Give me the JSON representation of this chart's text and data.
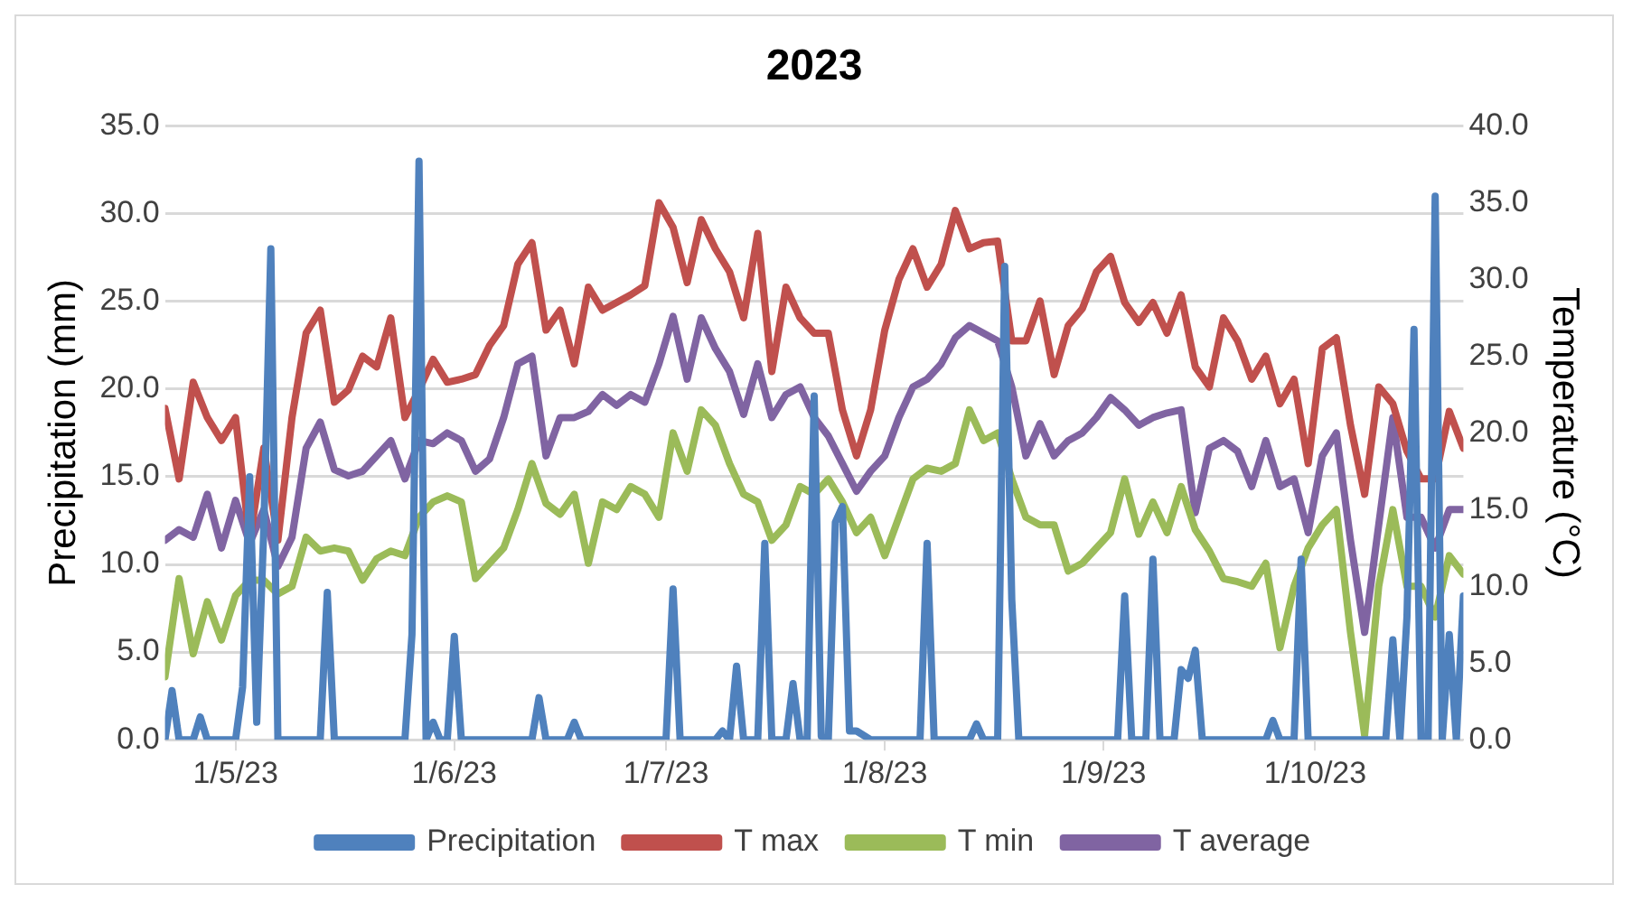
{
  "chart_data": {
    "type": "line",
    "title": "2023",
    "ylabel": "Precipitation (mm)",
    "y2label": "Temperature (°C)",
    "x": [
      "2023-04-21",
      "2023-04-23",
      "2023-04-25",
      "2023-04-27",
      "2023-04-29",
      "2023-05-01",
      "2023-05-03",
      "2023-05-05",
      "2023-05-07",
      "2023-05-09",
      "2023-05-11",
      "2023-05-13",
      "2023-05-15",
      "2023-05-17",
      "2023-05-19",
      "2023-05-21",
      "2023-05-23",
      "2023-05-25",
      "2023-05-27",
      "2023-05-29",
      "2023-05-31",
      "2023-06-02",
      "2023-06-04",
      "2023-06-06",
      "2023-06-08",
      "2023-06-10",
      "2023-06-12",
      "2023-06-14",
      "2023-06-16",
      "2023-06-18",
      "2023-06-20",
      "2023-06-22",
      "2023-06-24",
      "2023-06-26",
      "2023-06-28",
      "2023-06-30",
      "2023-07-02",
      "2023-07-04",
      "2023-07-06",
      "2023-07-08",
      "2023-07-10",
      "2023-07-12",
      "2023-07-14",
      "2023-07-16",
      "2023-07-18",
      "2023-07-20",
      "2023-07-22",
      "2023-07-24",
      "2023-07-26",
      "2023-07-28",
      "2023-07-30",
      "2023-08-01",
      "2023-08-03",
      "2023-08-05",
      "2023-08-07",
      "2023-08-09",
      "2023-08-11",
      "2023-08-13",
      "2023-08-15",
      "2023-08-17",
      "2023-08-19",
      "2023-08-21",
      "2023-08-23",
      "2023-08-25",
      "2023-08-27",
      "2023-08-29",
      "2023-08-31",
      "2023-09-02",
      "2023-09-04",
      "2023-09-06",
      "2023-09-08",
      "2023-09-10",
      "2023-09-12",
      "2023-09-14",
      "2023-09-16",
      "2023-09-18",
      "2023-09-20",
      "2023-09-22",
      "2023-09-24",
      "2023-09-26",
      "2023-09-28",
      "2023-09-30",
      "2023-10-02",
      "2023-10-04",
      "2023-10-06",
      "2023-10-08",
      "2023-10-10",
      "2023-10-12",
      "2023-10-14",
      "2023-10-16",
      "2023-10-18",
      "2023-10-20",
      "2023-10-22"
    ],
    "series": [
      {
        "name": "Precipitation",
        "color": "#4f81bd",
        "type": "line",
        "x": [
          "2023-04-21",
          "2023-04-22",
          "2023-04-23",
          "2023-04-25",
          "2023-04-26",
          "2023-04-27",
          "2023-05-01",
          "2023-05-02",
          "2023-05-03",
          "2023-05-04",
          "2023-05-05",
          "2023-05-06",
          "2023-05-07",
          "2023-05-13",
          "2023-05-14",
          "2023-05-15",
          "2023-05-25",
          "2023-05-26",
          "2023-05-27",
          "2023-05-28",
          "2023-05-29",
          "2023-05-30",
          "2023-05-31",
          "2023-06-01",
          "2023-06-02",
          "2023-06-12",
          "2023-06-13",
          "2023-06-14",
          "2023-06-17",
          "2023-06-18",
          "2023-06-19",
          "2023-07-01",
          "2023-07-02",
          "2023-07-03",
          "2023-07-08",
          "2023-07-09",
          "2023-07-10",
          "2023-07-11",
          "2023-07-12",
          "2023-07-14",
          "2023-07-15",
          "2023-07-16",
          "2023-07-18",
          "2023-07-19",
          "2023-07-20",
          "2023-07-21",
          "2023-07-22",
          "2023-07-23",
          "2023-07-24",
          "2023-07-25",
          "2023-07-26",
          "2023-07-27",
          "2023-07-28",
          "2023-07-30",
          "2023-08-06",
          "2023-08-07",
          "2023-08-08",
          "2023-08-13",
          "2023-08-14",
          "2023-08-15",
          "2023-08-17",
          "2023-08-18",
          "2023-08-19",
          "2023-08-20",
          "2023-09-03",
          "2023-09-04",
          "2023-09-05",
          "2023-09-07",
          "2023-09-08",
          "2023-09-09",
          "2023-09-11",
          "2023-09-12",
          "2023-09-13",
          "2023-09-14",
          "2023-09-15",
          "2023-09-24",
          "2023-09-25",
          "2023-09-26",
          "2023-09-28",
          "2023-09-29",
          "2023-09-30",
          "2023-10-11",
          "2023-10-12",
          "2023-10-13",
          "2023-10-14",
          "2023-10-15",
          "2023-10-16",
          "2023-10-17",
          "2023-10-18",
          "2023-10-19",
          "2023-10-20",
          "2023-10-21",
          "2023-10-22"
        ],
        "values": [
          0,
          2.8,
          0,
          0,
          1.3,
          0,
          0,
          3,
          15,
          1,
          12,
          28,
          0,
          0,
          8.4,
          0,
          0,
          6,
          33,
          0,
          1,
          0,
          0,
          5.9,
          0,
          0,
          2.4,
          0,
          0,
          1,
          0,
          0,
          8.6,
          0,
          0,
          0.5,
          0,
          4.2,
          0,
          0,
          11.2,
          0,
          0,
          3.2,
          0,
          0,
          19.6,
          0.2,
          0,
          12.4,
          13.3,
          0.5,
          0.5,
          0,
          0,
          11.2,
          0,
          0,
          0.9,
          0,
          0,
          27,
          8,
          0,
          0,
          8.2,
          0,
          0,
          10.3,
          0,
          0,
          4,
          3.5,
          5.1,
          0,
          0,
          1.1,
          0,
          0,
          10.3,
          0,
          0,
          5.7,
          0,
          7,
          23.4,
          0,
          0,
          31,
          0,
          6,
          0,
          8.2
        ]
      },
      {
        "name": "T max",
        "color": "#c0504d",
        "type": "line",
        "axis": "y2",
        "values": [
          21.6,
          17,
          23.3,
          21,
          19.5,
          21,
          13,
          19,
          13,
          21,
          26.5,
          28,
          22,
          22.8,
          25,
          24.3,
          27.5,
          21,
          22.8,
          24.8,
          23.3,
          23.5,
          23.8,
          25.7,
          27,
          31,
          32.4,
          26.7,
          28,
          24.5,
          29.5,
          28,
          28.5,
          29,
          29.6,
          35,
          33.4,
          29.8,
          33.9,
          32,
          30.5,
          27.5,
          33,
          24,
          29.5,
          27.5,
          26.5,
          26.5,
          21.5,
          18.5,
          21.5,
          26.7,
          30,
          32,
          29.5,
          31,
          34.5,
          32,
          32.4,
          32.5,
          26,
          26,
          28.6,
          23.8,
          27,
          28.1,
          30.5,
          31.5,
          28.5,
          27.2,
          28.5,
          26.5,
          29,
          24.3,
          23,
          27.5,
          26,
          23.5,
          25,
          21.9,
          23.5,
          18,
          25.5,
          26.2,
          20.5,
          16,
          23,
          21.9,
          18.8,
          17,
          17,
          21.4,
          19
        ]
      },
      {
        "name": "T min",
        "color": "#9bbb59",
        "type": "line",
        "axis": "y2",
        "values": [
          4.1,
          10.5,
          5.6,
          9,
          6.5,
          9.4,
          10.4,
          10.4,
          9.5,
          10,
          13.2,
          12.3,
          12.5,
          12.3,
          10.4,
          11.8,
          12.3,
          12,
          14.5,
          15.5,
          15.9,
          15.5,
          10.5,
          11.5,
          12.5,
          15,
          18,
          15.4,
          14.7,
          16,
          11.5,
          15.5,
          15,
          16.5,
          16,
          14.5,
          20,
          17.5,
          21.5,
          20.5,
          18,
          16,
          15.5,
          13,
          14,
          16.5,
          16,
          17,
          15.5,
          13.5,
          14.5,
          12,
          14.5,
          17,
          17.7,
          17.5,
          18,
          21.5,
          19.5,
          20,
          17,
          14.5,
          14,
          14,
          11,
          11.5,
          12.5,
          13.5,
          17,
          13.4,
          15.5,
          13.5,
          16.5,
          13.7,
          12.3,
          10.5,
          10.3,
          10,
          11.5,
          6,
          10,
          12.5,
          14,
          15,
          7,
          0.3,
          10,
          15,
          10,
          10,
          8,
          12,
          10.8
        ]
      },
      {
        "name": "T average",
        "color": "#8064a2",
        "type": "line",
        "axis": "y2",
        "values": [
          13,
          13.7,
          13.2,
          16,
          12.5,
          15.6,
          12.8,
          15,
          11.3,
          13.2,
          19,
          20.7,
          17.6,
          17.2,
          17.5,
          18.5,
          19.5,
          17,
          19.5,
          19.3,
          20,
          19.5,
          17.5,
          18.3,
          21,
          24.5,
          25,
          18.5,
          21,
          21,
          21.4,
          22.5,
          21.8,
          22.5,
          22,
          24.5,
          27.6,
          23.5,
          27.5,
          25.5,
          24,
          21.2,
          24.5,
          21,
          22.5,
          23,
          21,
          19.8,
          18,
          16.2,
          17.5,
          18.5,
          21,
          23,
          23.5,
          24.5,
          26.2,
          27,
          26.5,
          26,
          23,
          18.5,
          20.6,
          18.5,
          19.5,
          20,
          21,
          22.3,
          21.5,
          20.5,
          21,
          21.3,
          21.5,
          14.8,
          19,
          19.5,
          18.8,
          16.5,
          19.5,
          16.5,
          17,
          13.5,
          18.5,
          20,
          13,
          7,
          14,
          21,
          14.5,
          14.5,
          12.5,
          15,
          15
        ]
      }
    ],
    "xlim": [
      "2023-04-21",
      "2023-10-22"
    ],
    "xticks": [
      {
        "value": "2023-05-01",
        "label": "1/5/23"
      },
      {
        "value": "2023-06-01",
        "label": "1/6/23"
      },
      {
        "value": "2023-07-01",
        "label": "1/7/23"
      },
      {
        "value": "2023-08-01",
        "label": "1/8/23"
      },
      {
        "value": "2023-09-01",
        "label": "1/9/23"
      },
      {
        "value": "2023-10-01",
        "label": "1/10/23"
      }
    ],
    "ylim": [
      0,
      35
    ],
    "yticks": [
      {
        "value": 0,
        "label": "0.0"
      },
      {
        "value": 5,
        "label": "5.0"
      },
      {
        "value": 10,
        "label": "10.0"
      },
      {
        "value": 15,
        "label": "15.0"
      },
      {
        "value": 20,
        "label": "20.0"
      },
      {
        "value": 25,
        "label": "25.0"
      },
      {
        "value": 30,
        "label": "30.0"
      },
      {
        "value": 35,
        "label": "35.0"
      }
    ],
    "y2lim": [
      0,
      40
    ],
    "y2ticks": [
      {
        "value": 0,
        "label": "0.0"
      },
      {
        "value": 5,
        "label": "5.0"
      },
      {
        "value": 10,
        "label": "10.0"
      },
      {
        "value": 15,
        "label": "15.0"
      },
      {
        "value": 20,
        "label": "20.0"
      },
      {
        "value": 25,
        "label": "25.0"
      },
      {
        "value": 30,
        "label": "30.0"
      },
      {
        "value": 35,
        "label": "35.0"
      },
      {
        "value": 40,
        "label": "40.0"
      }
    ],
    "grid": "y",
    "legend": "bottom",
    "marker": "none",
    "line_style": "solid"
  }
}
